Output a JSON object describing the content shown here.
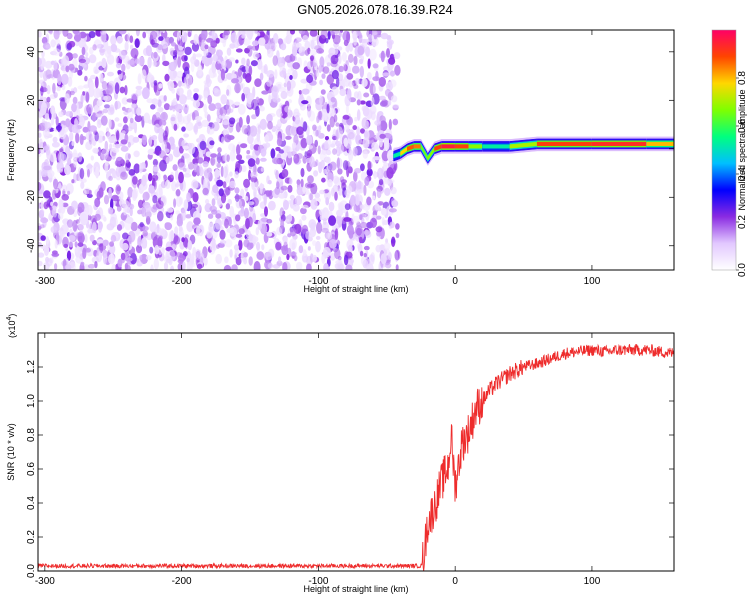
{
  "title": "GN05.2026.078.16.39.R24",
  "colors": {
    "series": "#ee2c2c",
    "colormap": [
      "#ffffff",
      "#e2c8ff",
      "#8a2be2",
      "#0000ff",
      "#00bfff",
      "#00ff7f",
      "#7fff00",
      "#ffd700",
      "#ff4500",
      "#ff0066"
    ]
  },
  "chart_data": [
    {
      "type": "heatmap",
      "title": "",
      "xlabel": "Height of straight line (km)",
      "ylabel": "Frequency (Hz)",
      "xlim": [
        -305,
        160
      ],
      "ylim": [
        -50,
        49
      ],
      "xticks": [
        "-300",
        "-200",
        "-100",
        "0",
        "100"
      ],
      "yticks": [
        "-40",
        "-20",
        "0",
        "20",
        "40"
      ],
      "colorbar": {
        "label": "Normalized spectral amplitude",
        "range": [
          0,
          1
        ],
        "ticks": [
          "0.0",
          "0.2",
          "0.4",
          "0.6",
          "0.8"
        ]
      },
      "noise_region_x": [
        -305,
        -45
      ],
      "signal_band": {
        "x_range": [
          -45,
          160
        ],
        "center_frequency_hz": 1,
        "points": [
          {
            "x": -45,
            "f": -3,
            "amp": 0.35
          },
          {
            "x": -40,
            "f": -2,
            "amp": 0.7
          },
          {
            "x": -35,
            "f": 0,
            "amp": 0.85
          },
          {
            "x": -30,
            "f": 1,
            "amp": 0.9
          },
          {
            "x": -25,
            "f": 1,
            "amp": 0.8
          },
          {
            "x": -20,
            "f": -4,
            "amp": 0.5
          },
          {
            "x": -15,
            "f": 0,
            "amp": 0.85
          },
          {
            "x": -10,
            "f": 1,
            "amp": 0.95
          },
          {
            "x": 0,
            "f": 1,
            "amp": 0.95
          },
          {
            "x": 10,
            "f": 1,
            "amp": 0.85
          },
          {
            "x": 20,
            "f": 1,
            "amp": 0.5
          },
          {
            "x": 40,
            "f": 1,
            "amp": 0.55
          },
          {
            "x": 60,
            "f": 2,
            "amp": 0.85
          },
          {
            "x": 100,
            "f": 2,
            "amp": 0.95
          },
          {
            "x": 140,
            "f": 2,
            "amp": 0.9
          },
          {
            "x": 160,
            "f": 2,
            "amp": 0.7
          }
        ]
      }
    },
    {
      "type": "line",
      "title": "",
      "xlabel": "Height of straight line (km)",
      "ylabel": "SNR (10 * v/v)",
      "multiplier_label": "(x10",
      "multiplier_exp": "4",
      "xlim": [
        -305,
        160
      ],
      "ylim": [
        0,
        1.4
      ],
      "xticks": [
        "-300",
        "-200",
        "-100",
        "0",
        "100"
      ],
      "yticks": [
        "0.0",
        "0.2",
        "0.4",
        "0.6",
        "0.8",
        "1.0",
        "1.2"
      ],
      "series": [
        {
          "x": [
            -305,
            -250,
            -200,
            -150,
            -100,
            -50,
            -30,
            -25,
            -24,
            -22,
            -20,
            -15,
            -10,
            -5,
            -3,
            0,
            5,
            10,
            15,
            20,
            25,
            30,
            40,
            50,
            60,
            70,
            80,
            90,
            100,
            110,
            120,
            130,
            140,
            150,
            160
          ],
          "y": [
            0.03,
            0.03,
            0.03,
            0.03,
            0.03,
            0.03,
            0.03,
            0.03,
            0.05,
            0.15,
            0.28,
            0.38,
            0.52,
            0.62,
            0.8,
            0.5,
            0.75,
            0.82,
            0.95,
            1.0,
            1.06,
            1.1,
            1.16,
            1.2,
            1.22,
            1.25,
            1.28,
            1.29,
            1.3,
            1.29,
            1.3,
            1.3,
            1.3,
            1.29,
            1.28
          ]
        }
      ]
    }
  ]
}
